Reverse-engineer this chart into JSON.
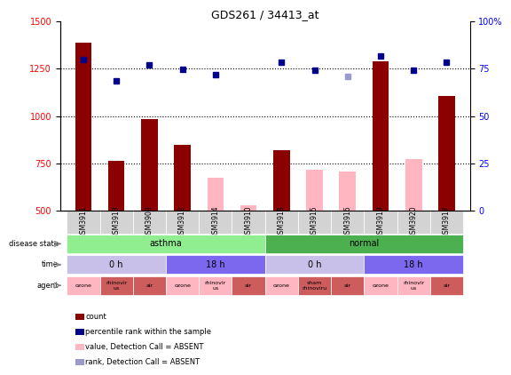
{
  "title": "GDS261 / 34413_at",
  "samples": [
    "GSM3911",
    "GSM3913",
    "GSM3909",
    "GSM3912",
    "GSM3914",
    "GSM3910",
    "GSM3918",
    "GSM3915",
    "GSM3916",
    "GSM3919",
    "GSM3920",
    "GSM3917"
  ],
  "count_values": [
    1390,
    762,
    982,
    848,
    null,
    null,
    818,
    null,
    null,
    1288,
    null,
    1107
  ],
  "count_absent": [
    null,
    null,
    null,
    null,
    672,
    530,
    null,
    718,
    706,
    null,
    775,
    null
  ],
  "percentile_values": [
    1298,
    1185,
    1270,
    1246,
    1220,
    null,
    1286,
    1240,
    null,
    1318,
    1240,
    1286
  ],
  "percentile_absent": [
    null,
    null,
    null,
    null,
    null,
    null,
    null,
    null,
    1210,
    null,
    null,
    null
  ],
  "ylim": [
    500,
    1500
  ],
  "y2lim": [
    0,
    100
  ],
  "yticks": [
    500,
    750,
    1000,
    1250,
    1500
  ],
  "y2ticks": [
    0,
    25,
    50,
    75,
    100
  ],
  "dotted_lines": [
    750,
    1000,
    1250
  ],
  "disease_state": {
    "asthma": {
      "start": 0,
      "end": 6,
      "color": "#90EE90"
    },
    "normal": {
      "start": 6,
      "end": 12,
      "color": "#4CAF50"
    }
  },
  "time": {
    "0h_asthma": {
      "start": 0,
      "end": 3,
      "label": "0 h",
      "color": "#B0A8E0"
    },
    "18h_asthma": {
      "start": 3,
      "end": 6,
      "label": "18 h",
      "color": "#7B68EE"
    },
    "0h_normal": {
      "start": 6,
      "end": 9,
      "label": "0 h",
      "color": "#B0A8E0"
    },
    "18h_normal": {
      "start": 9,
      "end": 12,
      "label": "18 h",
      "color": "#7B68EE"
    }
  },
  "agents": [
    {
      "label": "ozone",
      "color": "#FFB6C1"
    },
    {
      "label": "rhinovir\nus",
      "color": "#CD5C5C"
    },
    {
      "label": "air",
      "color": "#CD5C5C"
    },
    {
      "label": "ozone",
      "color": "#FFB6C1"
    },
    {
      "label": "rhinovir\nus",
      "color": "#FFB6C1"
    },
    {
      "label": "air",
      "color": "#CD5C5C"
    },
    {
      "label": "ozone",
      "color": "#FFB6C1"
    },
    {
      "label": "sham\nrhinoviru",
      "color": "#CD5C5C"
    },
    {
      "label": "air",
      "color": "#CD5C5C"
    },
    {
      "label": "ozone",
      "color": "#FFB6C1"
    },
    {
      "label": "rhinovir\nus",
      "color": "#FFB6C1"
    },
    {
      "label": "air",
      "color": "#CD5C5C"
    }
  ],
  "bar_color_present": "#8B0000",
  "bar_color_absent": "#FFB6C1",
  "dot_color_present": "#00008B",
  "dot_color_absent": "#9999CC",
  "bar_width": 0.5,
  "legend_items": [
    {
      "color": "#8B0000",
      "label": "count"
    },
    {
      "color": "#00008B",
      "label": "percentile rank within the sample"
    },
    {
      "color": "#FFB6C1",
      "label": "value, Detection Call = ABSENT"
    },
    {
      "color": "#9999CC",
      "label": "rank, Detection Call = ABSENT"
    }
  ]
}
